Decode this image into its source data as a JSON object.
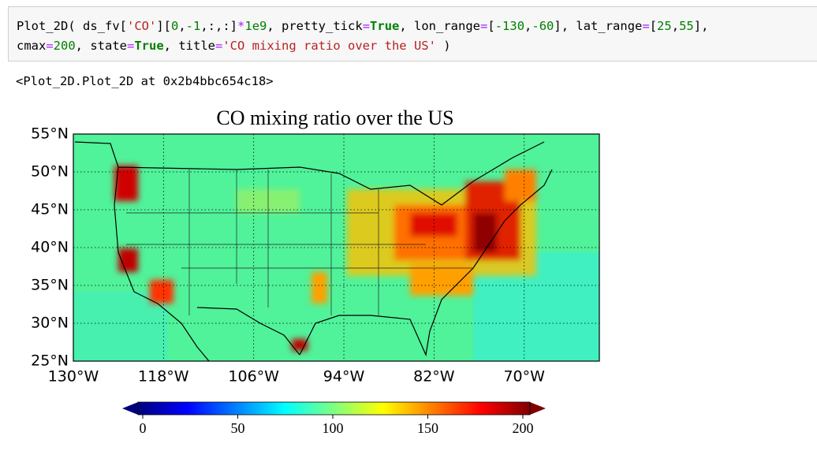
{
  "code_cell": {
    "lines": [
      [
        "Plot_2D( ds_fv[",
        "'CO'",
        "][",
        "0",
        ",",
        "-1",
        ",:,:]",
        "*",
        "1e9",
        ", pretty_tick",
        "=",
        "True",
        ", lon_range",
        "=",
        "[",
        "-130",
        ",",
        "-60",
        "], lat_range",
        "=",
        "[",
        "25",
        ",",
        "55",
        "],"
      ],
      [
        "cmax",
        "=",
        "200",
        ", state",
        "=",
        "True",
        ", title",
        "=",
        "'CO mixing ratio over the US'",
        " )"
      ]
    ]
  },
  "output_text": "<Plot_2D.Plot_2D at 0x2b4bbc654c18>",
  "chart_data": {
    "type": "heatmap-map",
    "title": "CO mixing ratio over the US",
    "xlim": [
      -130,
      -60
    ],
    "xticks": [
      {
        "value": -130,
        "label": "130°W"
      },
      {
        "value": -118,
        "label": "118°W"
      },
      {
        "value": -106,
        "label": "106°W"
      },
      {
        "value": -94,
        "label": "94°W"
      },
      {
        "value": -82,
        "label": "82°W"
      },
      {
        "value": -70,
        "label": "70°W"
      }
    ],
    "ylim": [
      25,
      55
    ],
    "yticks": [
      {
        "value": 25,
        "label": "25°N"
      },
      {
        "value": 30,
        "label": "30°N"
      },
      {
        "value": 35,
        "label": "35°N"
      },
      {
        "value": 40,
        "label": "40°N"
      },
      {
        "value": 45,
        "label": "45°N"
      },
      {
        "value": 50,
        "label": "50°N"
      },
      {
        "value": 55,
        "label": "55°N"
      }
    ],
    "grid": true,
    "colorbar": {
      "lim": [
        0,
        200
      ],
      "ticks": [
        0,
        50,
        100,
        150,
        200
      ],
      "colormap": "jet",
      "extend": "both"
    }
  }
}
